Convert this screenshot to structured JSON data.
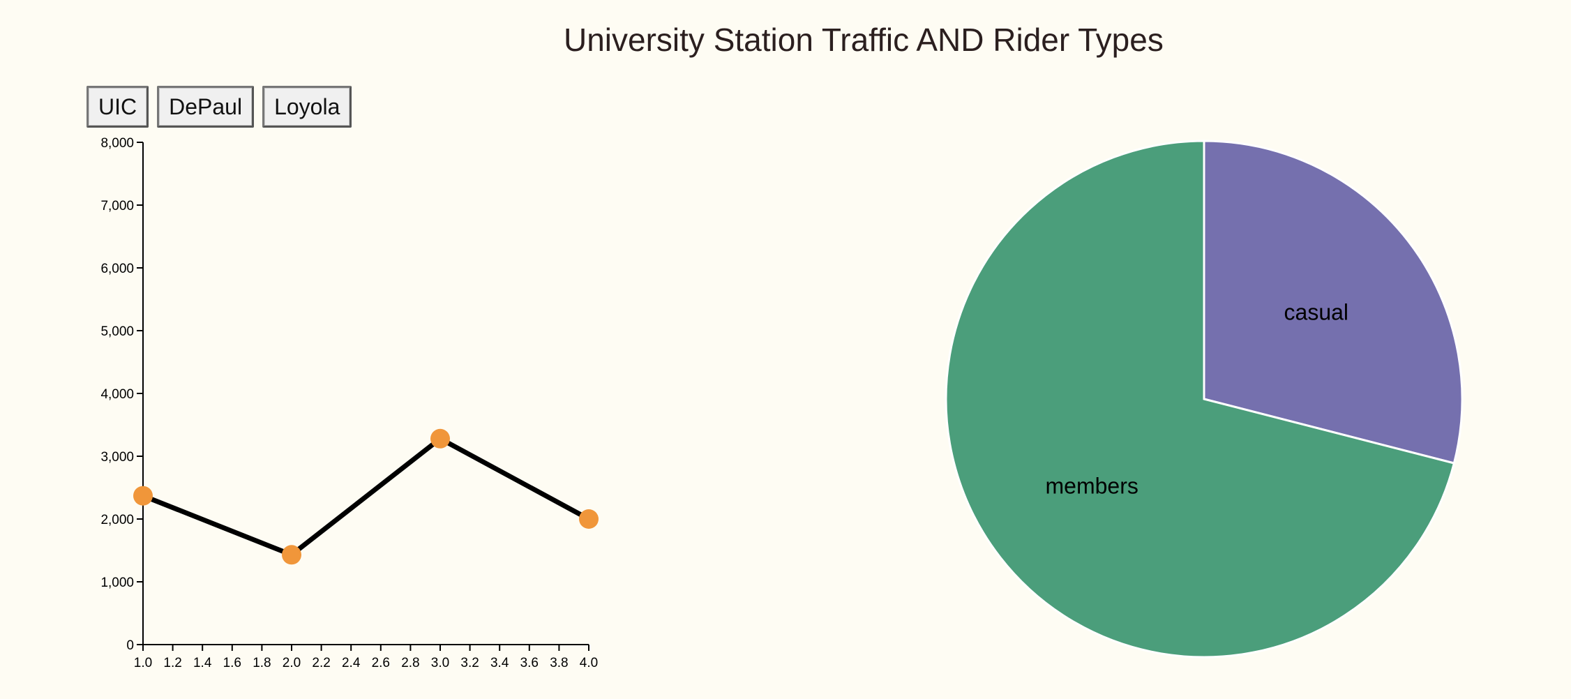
{
  "header": {
    "title": "University Station Traffic AND Rider Types"
  },
  "stations": {
    "buttons": [
      {
        "label": "UIC"
      },
      {
        "label": "DePaul"
      },
      {
        "label": "Loyola"
      }
    ]
  },
  "chart_data": [
    {
      "type": "line",
      "title": "",
      "xlabel": "",
      "ylabel": "",
      "x": [
        1.0,
        2.0,
        3.0,
        4.0
      ],
      "series": [
        {
          "values": [
            2370,
            1430,
            3280,
            2000
          ]
        }
      ],
      "xlim": [
        1.0,
        4.0
      ],
      "ylim": [
        0,
        8000
      ],
      "x_ticks": [
        "1.0",
        "1.2",
        "1.4",
        "1.6",
        "1.8",
        "2.0",
        "2.2",
        "2.4",
        "2.6",
        "2.8",
        "3.0",
        "3.2",
        "3.4",
        "3.6",
        "3.8",
        "4.0"
      ],
      "y_ticks": [
        "0",
        "1,000",
        "2,000",
        "3,000",
        "4,000",
        "5,000",
        "6,000",
        "7,000",
        "8,000"
      ],
      "grid": false,
      "colors": {
        "line": "#000000",
        "point": "#f0963a"
      }
    },
    {
      "type": "pie",
      "slices": [
        {
          "label": "casual",
          "value": 29,
          "color": "#7570ae"
        },
        {
          "label": "members",
          "value": 71,
          "color": "#4b9e7b"
        }
      ]
    }
  ]
}
